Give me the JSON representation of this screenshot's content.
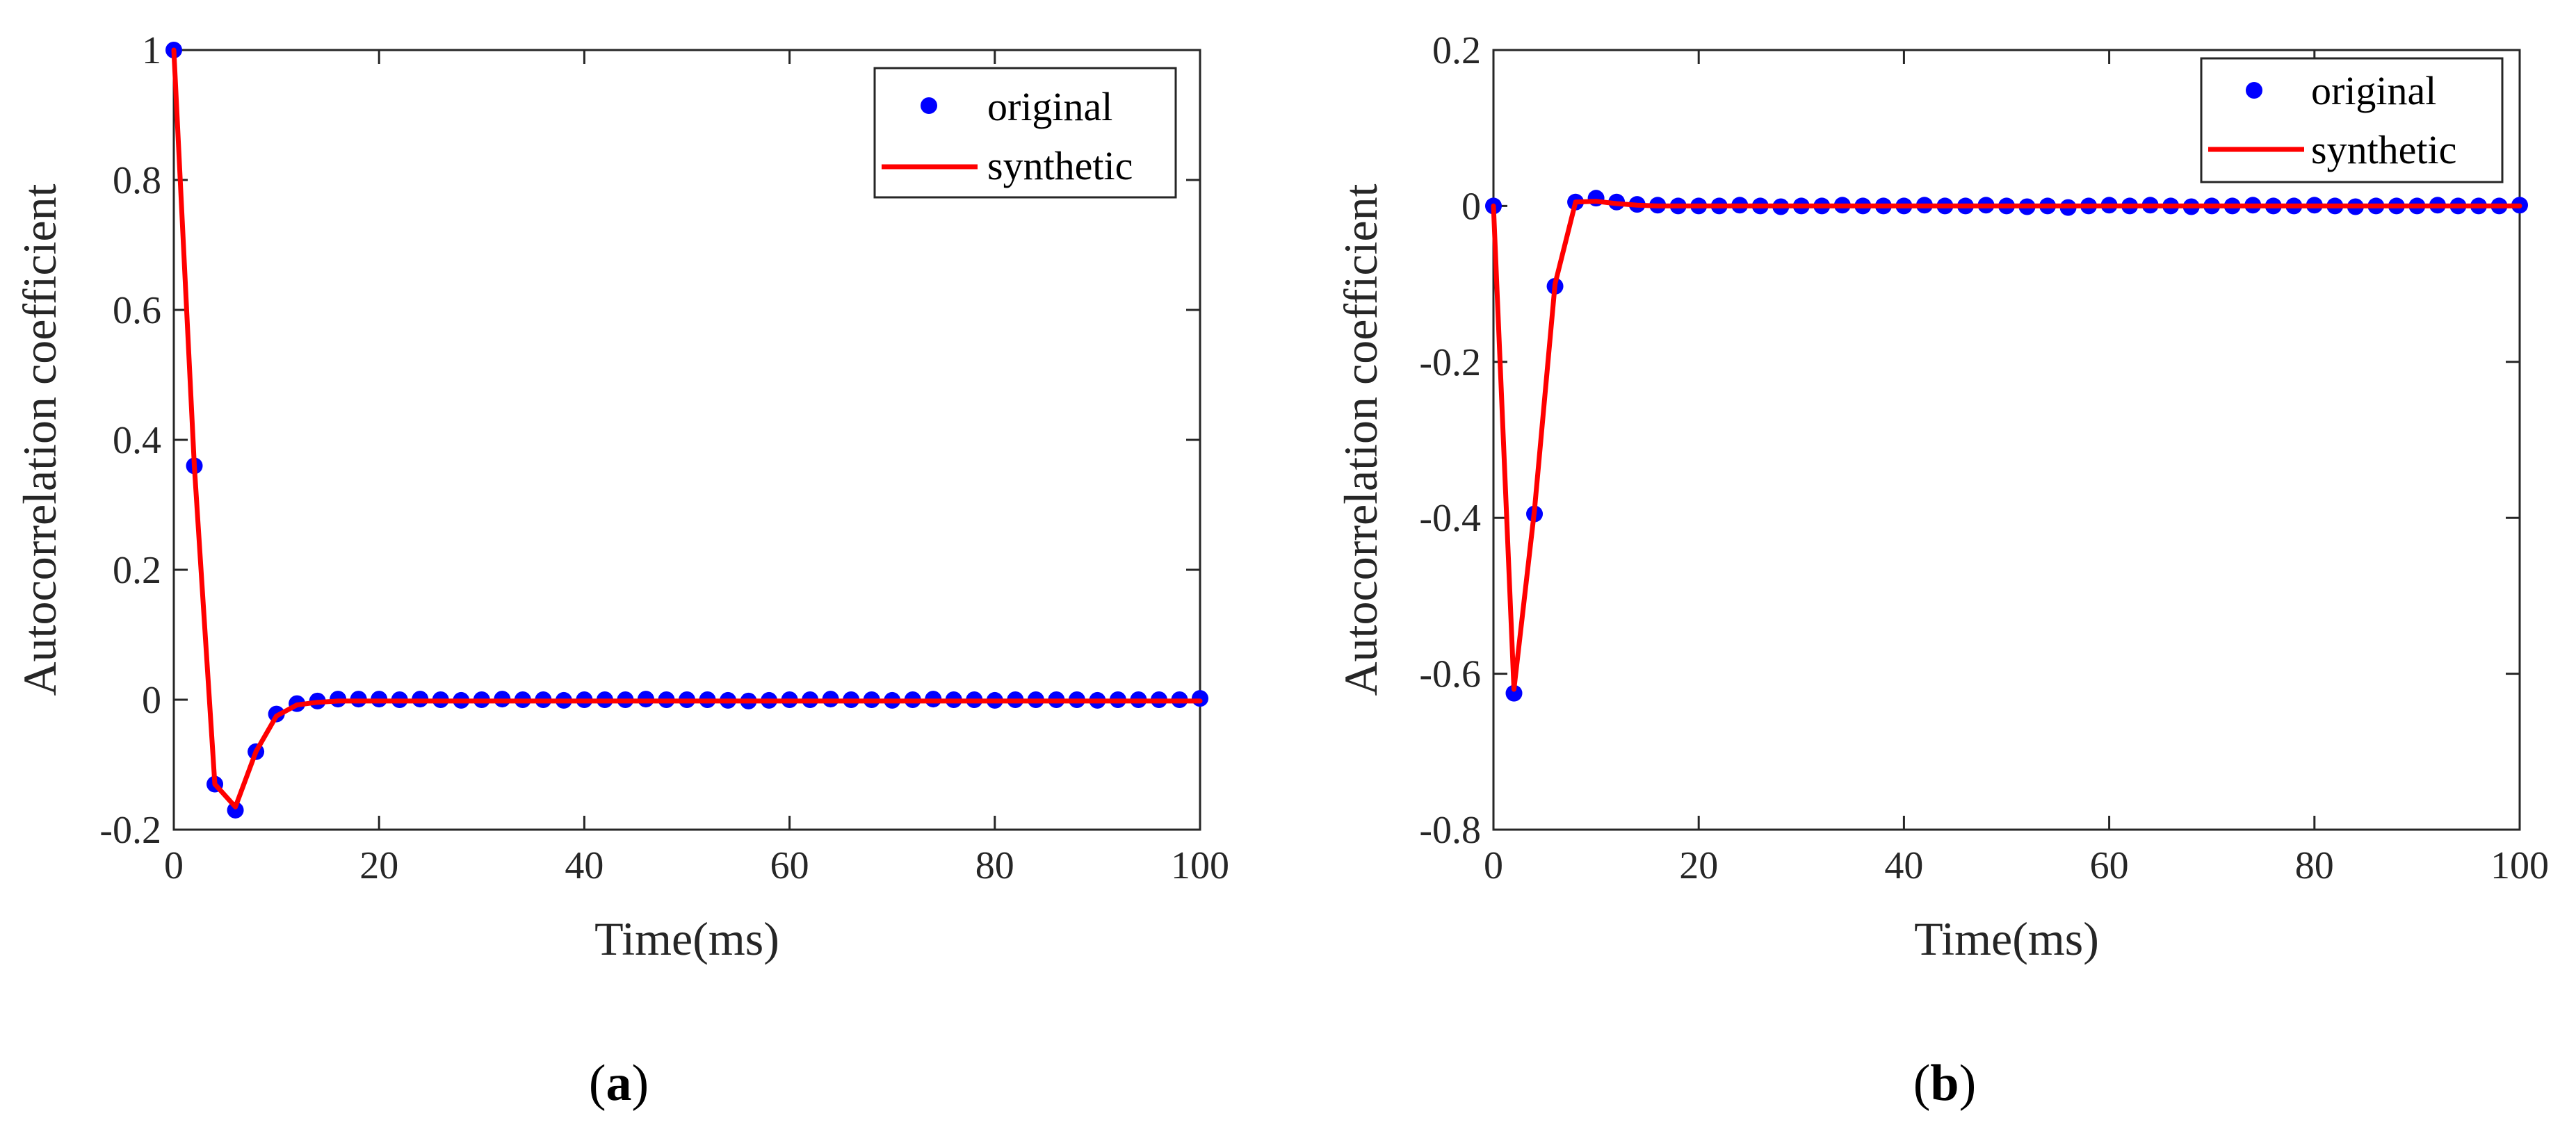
{
  "figure": {
    "panel_labels": [
      {
        "open": "(",
        "letter": "a",
        "close": ")"
      },
      {
        "open": "(",
        "letter": "b",
        "close": ")"
      }
    ]
  },
  "chart_data": [
    {
      "type": "line",
      "panel": "a",
      "title": "",
      "xlabel": "Time(ms)",
      "ylabel": "Autocorrelation coefficient",
      "xlim": [
        0,
        100
      ],
      "ylim": [
        -0.2,
        1
      ],
      "xticks": [
        0,
        20,
        40,
        60,
        80,
        100
      ],
      "xtick_labels": [
        "0",
        "20",
        "40",
        "60",
        "80",
        "100"
      ],
      "yticks": [
        -0.2,
        0,
        0.2,
        0.4,
        0.6,
        0.8,
        1
      ],
      "ytick_labels": [
        "-0.2",
        "0",
        "0.2",
        "0.4",
        "0.6",
        "0.8",
        "1"
      ],
      "grid": false,
      "legend": {
        "location": "top-right",
        "entries": [
          "original",
          "synthetic"
        ]
      },
      "x": [
        0,
        2,
        4,
        6,
        8,
        10,
        12,
        14,
        16,
        18,
        20,
        22,
        24,
        26,
        28,
        30,
        32,
        34,
        36,
        38,
        40,
        42,
        44,
        46,
        48,
        50,
        52,
        54,
        56,
        58,
        60,
        62,
        64,
        66,
        68,
        70,
        72,
        74,
        76,
        78,
        80,
        82,
        84,
        86,
        88,
        90,
        92,
        94,
        96,
        98,
        100
      ],
      "series": [
        {
          "name": "original",
          "style": "markers",
          "color": "#0000ff",
          "values": [
            1.0,
            0.36,
            -0.13,
            -0.17,
            -0.08,
            -0.022,
            -0.006,
            -0.002,
            0.001,
            0.001,
            0.001,
            0.0,
            0.001,
            0.0,
            -0.001,
            0.0,
            0.001,
            0.0,
            0.0,
            -0.001,
            0.0,
            0.0,
            0.0,
            0.001,
            0.0,
            0.0,
            0.0,
            -0.001,
            -0.002,
            -0.001,
            0.0,
            0.0,
            0.001,
            0.0,
            0.0,
            -0.001,
            0.0,
            0.001,
            0.0,
            0.0,
            -0.001,
            0.0,
            0.0,
            0.0,
            0.0,
            -0.001,
            0.0,
            0.0,
            0.0,
            0.0,
            0.002
          ]
        },
        {
          "name": "synthetic",
          "style": "line",
          "color": "#ff0000",
          "values": [
            1.0,
            0.36,
            -0.13,
            -0.165,
            -0.08,
            -0.025,
            -0.008,
            -0.004,
            -0.002,
            -0.002,
            -0.002,
            -0.002,
            -0.002,
            -0.002,
            -0.002,
            -0.002,
            -0.002,
            -0.002,
            -0.002,
            -0.002,
            -0.002,
            -0.002,
            -0.002,
            -0.002,
            -0.002,
            -0.002,
            -0.002,
            -0.002,
            -0.002,
            -0.002,
            -0.002,
            -0.002,
            -0.002,
            -0.002,
            -0.002,
            -0.002,
            -0.002,
            -0.002,
            -0.002,
            -0.002,
            -0.002,
            -0.002,
            -0.002,
            -0.002,
            -0.002,
            -0.002,
            -0.002,
            -0.002,
            -0.002,
            -0.002,
            -0.002
          ]
        }
      ]
    },
    {
      "type": "line",
      "panel": "b",
      "title": "",
      "xlabel": "Time(ms)",
      "ylabel": "Autocorrelation coefficient",
      "xlim": [
        0,
        100
      ],
      "ylim": [
        -0.8,
        0.2
      ],
      "xticks": [
        0,
        20,
        40,
        60,
        80,
        100
      ],
      "xtick_labels": [
        "0",
        "20",
        "40",
        "60",
        "80",
        "100"
      ],
      "yticks": [
        -0.8,
        -0.6,
        -0.4,
        -0.2,
        0,
        0.2
      ],
      "ytick_labels": [
        "-0.8",
        "-0.6",
        "-0.4",
        "-0.2",
        "0",
        "0.2"
      ],
      "grid": false,
      "legend": {
        "location": "top-right",
        "entries": [
          "original",
          "synthetic"
        ]
      },
      "x": [
        0,
        2,
        4,
        6,
        8,
        10,
        12,
        14,
        16,
        18,
        20,
        22,
        24,
        26,
        28,
        30,
        32,
        34,
        36,
        38,
        40,
        42,
        44,
        46,
        48,
        50,
        52,
        54,
        56,
        58,
        60,
        62,
        64,
        66,
        68,
        70,
        72,
        74,
        76,
        78,
        80,
        82,
        84,
        86,
        88,
        90,
        92,
        94,
        96,
        98,
        100
      ],
      "series": [
        {
          "name": "original",
          "style": "markers",
          "color": "#0000ff",
          "values": [
            0.0,
            -0.625,
            -0.395,
            -0.103,
            0.005,
            0.01,
            0.005,
            0.002,
            0.001,
            0.0,
            0.0,
            0.0,
            0.001,
            0.0,
            -0.001,
            0.0,
            0.0,
            0.001,
            0.0,
            0.0,
            0.0,
            0.001,
            0.0,
            0.0,
            0.001,
            0.0,
            -0.001,
            0.0,
            -0.002,
            0.0,
            0.001,
            0.0,
            0.001,
            0.0,
            -0.001,
            0.0,
            0.0,
            0.001,
            0.0,
            0.0,
            0.001,
            0.0,
            -0.001,
            0.0,
            0.0,
            0.0,
            0.001,
            0.0,
            0.0,
            0.0,
            0.001
          ]
        },
        {
          "name": "synthetic",
          "style": "line",
          "color": "#ff0000",
          "values": [
            0.0,
            -0.62,
            -0.39,
            -0.1,
            0.005,
            0.006,
            0.003,
            0.001,
            0.0,
            0.0,
            0.0,
            0.0,
            0.0,
            0.0,
            0.0,
            0.0,
            0.0,
            0.0,
            0.0,
            0.0,
            0.0,
            0.0,
            0.0,
            0.0,
            0.0,
            0.0,
            0.0,
            0.0,
            0.0,
            0.0,
            0.0,
            0.0,
            0.0,
            0.0,
            0.0,
            0.0,
            0.0,
            0.0,
            0.0,
            0.0,
            0.0,
            0.0,
            0.0,
            0.0,
            0.0,
            0.0,
            0.0,
            0.0,
            0.0,
            0.0,
            0.0
          ]
        }
      ]
    }
  ]
}
